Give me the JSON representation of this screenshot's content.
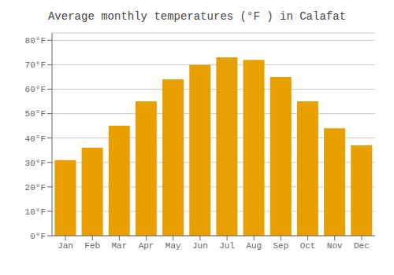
{
  "chart_data": {
    "type": "bar",
    "title": "Average monthly temperatures (°F ) in Calafat",
    "categories": [
      "Jan",
      "Feb",
      "Mar",
      "Apr",
      "May",
      "Jun",
      "Jul",
      "Aug",
      "Sep",
      "Oct",
      "Nov",
      "Dec"
    ],
    "values": [
      31,
      36,
      45,
      55,
      64,
      70,
      73,
      72,
      65,
      55,
      44,
      37
    ],
    "color": "#E8A000",
    "ylim": [
      0,
      83
    ],
    "yticks": [
      {
        "value": 0,
        "label": "0°F"
      },
      {
        "value": 10,
        "label": "10°F"
      },
      {
        "value": 20,
        "label": "20°F"
      },
      {
        "value": 30,
        "label": "30°F"
      },
      {
        "value": 40,
        "label": "40°F"
      },
      {
        "value": 50,
        "label": "50°F"
      },
      {
        "value": 60,
        "label": "60°F"
      },
      {
        "value": 70,
        "label": "70°F"
      },
      {
        "value": 80,
        "label": "80°F"
      }
    ],
    "grid": true
  }
}
